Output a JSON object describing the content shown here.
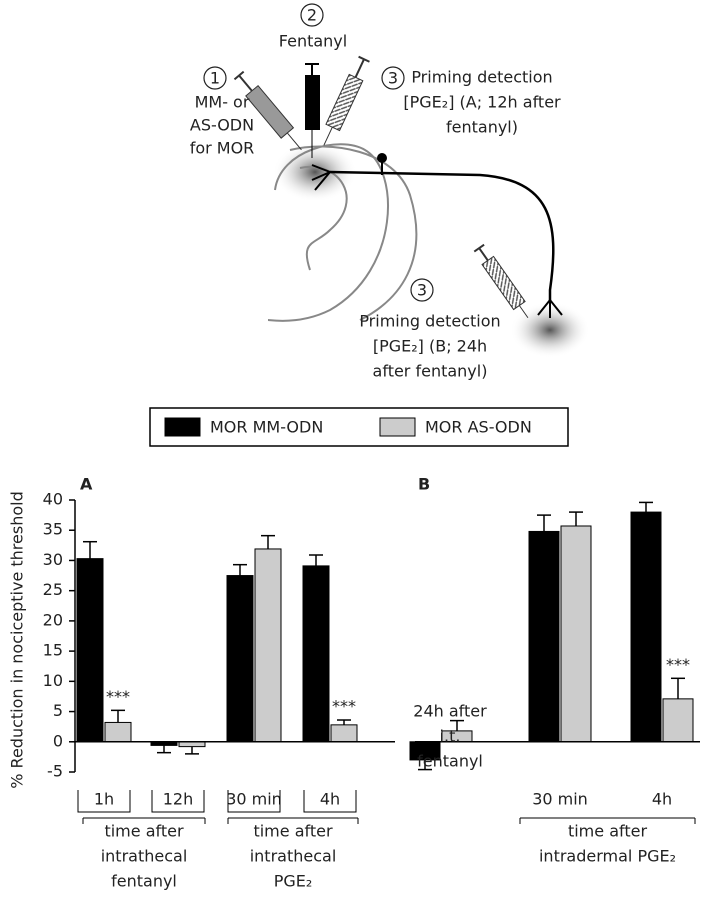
{
  "diagram": {
    "step1": {
      "number": "1",
      "lines": [
        "MM- or",
        "AS-ODN",
        "for MOR"
      ]
    },
    "step2": {
      "number": "2",
      "lines": [
        "Fentanyl"
      ]
    },
    "step3a": {
      "number": "3",
      "lines": [
        "Priming detection",
        "[PGE₂] (A; 12h after",
        "fentanyl)"
      ]
    },
    "step3b": {
      "number": "3",
      "lines": [
        "Priming detection",
        "[PGE₂] (B; 24h",
        "after fentanyl)"
      ]
    }
  },
  "chart_data": [
    {
      "type": "bar",
      "panel_label": "A",
      "y_label": "% Reduction in nociceptive threshold",
      "categories": [
        "1h",
        "12h",
        "30 min",
        "4h"
      ],
      "series": [
        {
          "name": "MOR MM-ODN",
          "color": "#000000",
          "values": [
            30.3,
            -0.6,
            27.5,
            29.1
          ],
          "errors": [
            2.8,
            1.2,
            1.8,
            1.8
          ]
        },
        {
          "name": "MOR AS-ODN",
          "color": "#cccccc",
          "values": [
            3.2,
            -0.8,
            31.9,
            2.8
          ],
          "errors": [
            2.0,
            1.2,
            2.2,
            0.8
          ]
        }
      ],
      "annotations": [
        "***",
        "***"
      ],
      "group_labels": [
        [
          "time after",
          "intrathecal",
          "fentanyl"
        ],
        [
          "time after",
          "intrathecal",
          "PGE₂"
        ]
      ],
      "ylim": [
        -5,
        40
      ],
      "yticks": [
        -5,
        0,
        5,
        10,
        15,
        20,
        25,
        30,
        35,
        40
      ]
    },
    {
      "type": "bar",
      "panel_label": "B",
      "categories": [
        null,
        "30 min",
        "4h"
      ],
      "series": [
        {
          "color": "#000000",
          "values": [
            -3.0,
            34.8,
            38.0
          ],
          "errors": [
            1.6,
            2.7,
            1.6
          ]
        },
        {
          "color": "#cccccc",
          "values": [
            1.8,
            35.7,
            7.1
          ],
          "errors": [
            1.7,
            2.3,
            3.4
          ]
        }
      ],
      "annotations": [
        "***",
        [
          "24h after",
          "i.t.",
          "fentanyl"
        ]
      ],
      "group_labels": [
        [
          "time after",
          "intradermal PGE₂"
        ]
      ],
      "ylim": [
        -5,
        40
      ]
    }
  ]
}
